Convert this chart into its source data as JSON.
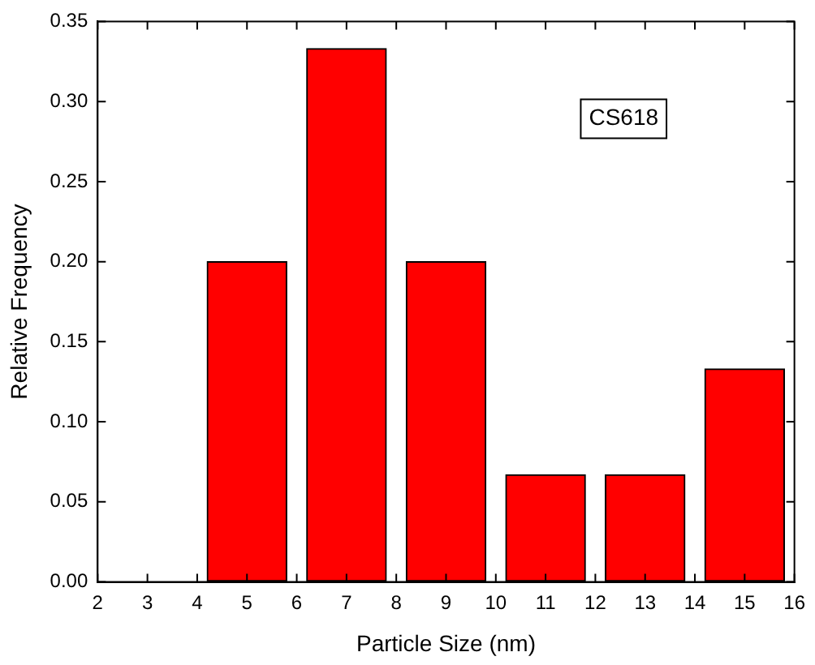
{
  "chart_data": {
    "type": "histogram",
    "xlabel": "Particle Size (nm)",
    "ylabel": "Relative Frequency",
    "bins": [
      4,
      6,
      8,
      10,
      12,
      14,
      16
    ],
    "values": [
      0.2,
      0.333,
      0.2,
      0.067,
      0.067,
      0.133
    ],
    "color": "#ff0000",
    "xlim": [
      2,
      16
    ],
    "xticks": [
      2,
      3,
      4,
      5,
      6,
      7,
      8,
      9,
      10,
      11,
      12,
      13,
      14,
      15,
      16
    ],
    "ylim": [
      0,
      0.35
    ],
    "yticks": [
      {
        "value": 0,
        "label": "0.00"
      },
      0.05,
      {
        "value": 0.1,
        "label": "0.10"
      },
      0.15,
      {
        "value": 0.2,
        "label": "0.20"
      },
      0.25,
      {
        "value": 0.3,
        "label": "0.30"
      },
      0.35
    ],
    "annotations": [
      "CS618"
    ],
    "grid": false,
    "legend": false
  }
}
